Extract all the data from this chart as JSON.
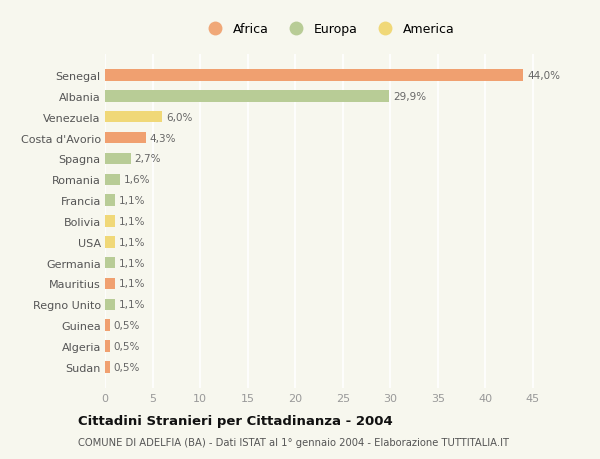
{
  "categories": [
    "Sudan",
    "Algeria",
    "Guinea",
    "Regno Unito",
    "Mauritius",
    "Germania",
    "USA",
    "Bolivia",
    "Francia",
    "Romania",
    "Spagna",
    "Costa d'Avorio",
    "Venezuela",
    "Albania",
    "Senegal"
  ],
  "values": [
    0.5,
    0.5,
    0.5,
    1.1,
    1.1,
    1.1,
    1.1,
    1.1,
    1.1,
    1.6,
    2.7,
    4.3,
    6.0,
    29.9,
    44.0
  ],
  "labels": [
    "0,5%",
    "0,5%",
    "0,5%",
    "1,1%",
    "1,1%",
    "1,1%",
    "1,1%",
    "1,1%",
    "1,1%",
    "1,6%",
    "2,7%",
    "4,3%",
    "6,0%",
    "29,9%",
    "44,0%"
  ],
  "bar_colors": [
    "#f0a070",
    "#f0a070",
    "#f0a070",
    "#b8cc96",
    "#f0a070",
    "#b8cc96",
    "#f0d878",
    "#f0d878",
    "#b8cc96",
    "#b8cc96",
    "#b8cc96",
    "#f0a070",
    "#f0d878",
    "#b8cc96",
    "#f0a070"
  ],
  "legend": [
    {
      "label": "Africa",
      "color": "#f0a878"
    },
    {
      "label": "Europa",
      "color": "#b8cc96"
    },
    {
      "label": "America",
      "color": "#f0d878"
    }
  ],
  "title": "Cittadini Stranieri per Cittadinanza - 2004",
  "subtitle": "COMUNE DI ADELFIA (BA) - Dati ISTAT al 1° gennaio 2004 - Elaborazione TUTTITALIA.IT",
  "xlim": [
    0,
    47
  ],
  "xticks": [
    0,
    5,
    10,
    15,
    20,
    25,
    30,
    35,
    40,
    45
  ],
  "bg_color": "#f7f7ee",
  "grid_color": "#ffffff"
}
